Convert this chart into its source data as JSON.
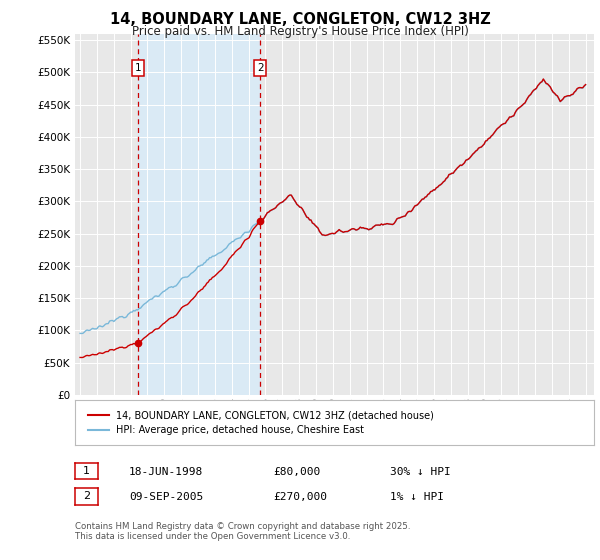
{
  "title": "14, BOUNDARY LANE, CONGLETON, CW12 3HZ",
  "subtitle": "Price paid vs. HM Land Registry's House Price Index (HPI)",
  "legend_line1": "14, BOUNDARY LANE, CONGLETON, CW12 3HZ (detached house)",
  "legend_line2": "HPI: Average price, detached house, Cheshire East",
  "annotation1_label": "1",
  "annotation1_date": "18-JUN-1998",
  "annotation1_price": "£80,000",
  "annotation1_hpi": "30% ↓ HPI",
  "annotation1_year": 1998.46,
  "annotation1_value": 80000,
  "annotation2_label": "2",
  "annotation2_date": "09-SEP-2005",
  "annotation2_price": "£270,000",
  "annotation2_hpi": "1% ↓ HPI",
  "annotation2_year": 2005.69,
  "annotation2_value": 270000,
  "hpi_color": "#7ab8d9",
  "price_color": "#cc0000",
  "vline_color": "#cc0000",
  "shade_color": "#daeaf5",
  "grid_color": "#ffffff",
  "background_color": "#e8e8e8",
  "ylim": [
    0,
    560000
  ],
  "yticks": [
    0,
    50000,
    100000,
    150000,
    200000,
    250000,
    300000,
    350000,
    400000,
    450000,
    500000,
    550000
  ],
  "footer_text": "Contains HM Land Registry data © Crown copyright and database right 2025.\nThis data is licensed under the Open Government Licence v3.0."
}
